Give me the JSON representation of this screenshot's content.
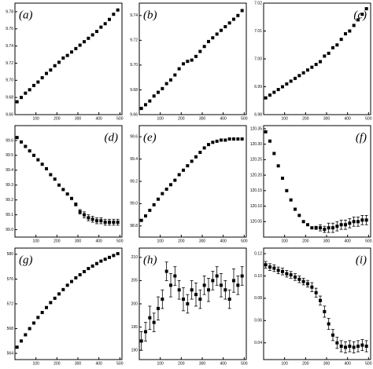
{
  "chart_data": [
    {
      "type": "scatter",
      "label": "(a)",
      "label_corner": "upper left",
      "color": "#000000",
      "x": [
        10,
        30,
        50,
        70,
        90,
        110,
        130,
        150,
        170,
        190,
        210,
        230,
        250,
        270,
        290,
        310,
        330,
        350,
        370,
        390,
        410,
        430,
        450,
        470,
        490
      ],
      "values": [
        9.675,
        9.68,
        9.685,
        9.689,
        9.694,
        9.698,
        9.703,
        9.708,
        9.712,
        9.717,
        9.721,
        9.726,
        9.729,
        9.733,
        9.737,
        9.741,
        9.745,
        9.749,
        9.753,
        9.757,
        9.762,
        9.766,
        9.771,
        9.777,
        9.782
      ],
      "xlim": [
        0,
        510
      ],
      "xticks": [
        100,
        200,
        300,
        400,
        500
      ],
      "ylim": [
        9.66,
        9.79
      ],
      "yticks": [
        9.66,
        9.68,
        {
          "value": 9.7,
          "label": "9.70"
        },
        9.72,
        9.74,
        9.76,
        9.78
      ]
    },
    {
      "type": "scatter",
      "label": "(b)",
      "label_corner": "upper left",
      "color": "#000000",
      "x": [
        10,
        30,
        50,
        70,
        90,
        110,
        130,
        150,
        170,
        190,
        210,
        230,
        250,
        270,
        290,
        310,
        330,
        350,
        370,
        390,
        410,
        430,
        450,
        470,
        490
      ],
      "values": [
        9.665,
        9.668,
        9.671,
        9.675,
        9.678,
        9.681,
        9.685,
        9.688,
        9.692,
        9.697,
        9.701,
        9.703,
        9.704,
        9.707,
        9.711,
        9.715,
        9.719,
        9.722,
        9.725,
        9.728,
        9.731,
        9.734,
        9.737,
        9.74,
        9.744
      ],
      "xlim": [
        0,
        510
      ],
      "xticks": [
        100,
        200,
        300,
        400,
        500
      ],
      "ylim": [
        9.66,
        9.75
      ],
      "yticks": [
        9.66,
        9.68,
        {
          "value": 9.7,
          "label": "9.70"
        },
        9.72,
        9.74
      ]
    },
    {
      "type": "scatter",
      "label": "(c)",
      "label_corner": "upper right",
      "color": "#000000",
      "x": [
        10,
        30,
        50,
        70,
        90,
        110,
        130,
        150,
        170,
        190,
        210,
        230,
        250,
        270,
        290,
        310,
        330,
        350,
        370,
        390,
        410,
        430,
        450,
        470,
        490
      ],
      "values": [
        6.986,
        6.987,
        6.988,
        6.989,
        6.99,
        6.991,
        6.992,
        6.993,
        6.994,
        6.995,
        6.996,
        6.997,
        6.998,
        6.999,
        7.001,
        7.002,
        7.004,
        7.005,
        7.007,
        7.009,
        7.01,
        7.012,
        7.014,
        7.016,
        7.018
      ],
      "xlim": [
        0,
        510
      ],
      "xticks": [
        100,
        200,
        300,
        400,
        500
      ],
      "ylim": [
        6.98,
        7.02
      ],
      "yticks": [
        6.98,
        6.99,
        {
          "value": 7,
          "label": "7.00"
        },
        7.01,
        7.02
      ]
    },
    {
      "type": "scatter",
      "label": "(d)",
      "label_corner": "upper right",
      "color": "#000000",
      "x": [
        10,
        30,
        50,
        70,
        90,
        110,
        130,
        150,
        170,
        190,
        210,
        230,
        250,
        270,
        290,
        310,
        330,
        350,
        370,
        390,
        410,
        430,
        450,
        470,
        490
      ],
      "values": [
        99.62,
        99.59,
        99.56,
        99.53,
        99.5,
        99.47,
        99.44,
        99.41,
        99.37,
        99.34,
        99.3,
        99.27,
        99.24,
        99.21,
        99.17,
        99.12,
        99.1,
        99.08,
        99.07,
        99.06,
        99.06,
        99.05,
        99.05,
        99.05,
        99.05
      ],
      "errors": [
        0,
        0,
        0,
        0,
        0,
        0,
        0,
        0,
        0,
        0,
        0,
        0,
        0,
        0,
        0.01,
        0.015,
        0.02,
        0.02,
        0.02,
        0.02,
        0.02,
        0.02,
        0.02,
        0.02,
        0.02
      ],
      "xlim": [
        0,
        510
      ],
      "xticks": [
        100,
        200,
        300,
        400,
        500
      ],
      "ylim": [
        98.95,
        99.7
      ],
      "yticks": [
        {
          "value": 99,
          "label": "99.0"
        },
        99.1,
        99.2,
        99.3,
        99.4,
        99.5,
        99.6
      ]
    },
    {
      "type": "scatter",
      "label": "(e)",
      "label_corner": "upper left",
      "color": "#000000",
      "x": [
        10,
        30,
        50,
        70,
        90,
        110,
        130,
        150,
        170,
        190,
        210,
        230,
        250,
        270,
        290,
        310,
        330,
        350,
        370,
        390,
        410,
        430,
        450,
        470,
        490
      ],
      "values": [
        98.85,
        98.89,
        98.94,
        98.99,
        99.04,
        99.09,
        99.13,
        99.17,
        99.21,
        99.26,
        99.3,
        99.34,
        99.38,
        99.42,
        99.46,
        99.5,
        99.53,
        99.55,
        99.56,
        99.57,
        99.57,
        99.58,
        99.58,
        99.58,
        99.58
      ],
      "xlim": [
        0,
        510
      ],
      "xticks": [
        100,
        200,
        300,
        400,
        500
      ],
      "ylim": [
        98.7,
        99.7
      ],
      "yticks": [
        98.8,
        {
          "value": 99,
          "label": "99.0"
        },
        99.2,
        99.4,
        99.6
      ]
    },
    {
      "type": "scatter",
      "label": "(f)",
      "label_corner": "upper right",
      "color": "#000000",
      "x": [
        10,
        30,
        50,
        70,
        90,
        110,
        130,
        150,
        170,
        190,
        210,
        230,
        250,
        270,
        290,
        310,
        330,
        350,
        370,
        390,
        410,
        430,
        450,
        470,
        490
      ],
      "values": [
        120.34,
        120.31,
        120.27,
        120.23,
        120.19,
        120.15,
        120.12,
        120.09,
        120.07,
        120.05,
        120.04,
        120.03,
        120.03,
        120.03,
        120.025,
        120.03,
        120.03,
        120.035,
        120.04,
        120.04,
        120.045,
        120.05,
        120.05,
        120.055,
        120.055
      ],
      "errors": [
        0,
        0,
        0,
        0,
        0,
        0,
        0,
        0,
        0,
        0,
        0,
        0,
        0.005,
        0.01,
        0.01,
        0.015,
        0.015,
        0.015,
        0.015,
        0.015,
        0.015,
        0.015,
        0.015,
        0.015,
        0.015
      ],
      "xlim": [
        0,
        510
      ],
      "xticks": [
        100,
        200,
        300,
        400,
        500
      ],
      "ylim": [
        120,
        120.36
      ],
      "yticks": [
        120.05,
        {
          "value": 120.1,
          "label": "120.10"
        },
        120.15,
        {
          "value": 120.2,
          "label": "120.20"
        },
        120.25,
        {
          "value": 120.3,
          "label": "120.30"
        },
        120.35
      ]
    },
    {
      "type": "scatter",
      "label": "(g)",
      "label_corner": "upper left",
      "color": "#000000",
      "x": [
        10,
        30,
        50,
        70,
        90,
        110,
        130,
        150,
        170,
        190,
        210,
        230,
        250,
        270,
        290,
        310,
        330,
        350,
        370,
        390,
        410,
        430,
        450,
        470,
        490
      ],
      "values": [
        565,
        566,
        567,
        568,
        568.9,
        569.8,
        570.6,
        571.4,
        572.2,
        572.9,
        573.6,
        574.3,
        575,
        575.6,
        576.2,
        576.7,
        577.2,
        577.7,
        578.1,
        578.5,
        578.9,
        579.2,
        579.5,
        579.8,
        580.1
      ],
      "xlim": [
        0,
        510
      ],
      "xticks": [
        100,
        200,
        300,
        400,
        500
      ],
      "ylim": [
        563,
        581
      ],
      "yticks": [
        564,
        568,
        572,
        576,
        580
      ]
    },
    {
      "type": "scatter",
      "label": "(h)",
      "label_corner": "upper left",
      "color": "#000000",
      "x": [
        10,
        30,
        50,
        70,
        90,
        110,
        130,
        150,
        170,
        190,
        210,
        230,
        250,
        270,
        290,
        310,
        330,
        350,
        370,
        390,
        410,
        430,
        450,
        470,
        490
      ],
      "values": [
        192,
        194,
        197,
        196,
        199,
        201,
        207,
        204,
        206,
        203,
        201,
        200,
        203,
        202,
        201,
        204,
        203,
        205,
        206,
        204,
        203,
        201,
        205,
        204,
        206
      ],
      "errors": [
        2,
        2,
        2.5,
        2,
        2.5,
        2,
        2,
        2.5,
        2,
        2,
        2.5,
        2,
        2,
        2.5,
        2,
        2,
        2.5,
        2,
        2,
        2.5,
        2,
        2,
        2.5,
        2,
        2
      ],
      "xlim": [
        0,
        510
      ],
      "xticks": [
        100,
        200,
        300,
        400,
        500
      ],
      "ylim": [
        188,
        212
      ],
      "yticks": [
        190,
        195,
        200,
        205,
        210
      ]
    },
    {
      "type": "scatter",
      "label": "(i)",
      "label_corner": "upper right",
      "color": "#000000",
      "x": [
        10,
        30,
        50,
        70,
        90,
        110,
        130,
        150,
        170,
        190,
        210,
        230,
        250,
        270,
        290,
        310,
        330,
        350,
        370,
        390,
        410,
        430,
        450,
        470,
        490
      ],
      "values": [
        0.11,
        0.108,
        0.107,
        0.105,
        0.104,
        0.102,
        0.101,
        0.099,
        0.097,
        0.095,
        0.093,
        0.09,
        0.085,
        0.078,
        0.068,
        0.057,
        0.047,
        0.04,
        0.037,
        0.036,
        0.037,
        0.036,
        0.037,
        0.038,
        0.037
      ],
      "errors": [
        0.003,
        0.003,
        0.003,
        0.003,
        0.003,
        0.003,
        0.003,
        0.003,
        0.003,
        0.003,
        0.003,
        0.004,
        0.004,
        0.004,
        0.005,
        0.005,
        0.005,
        0.005,
        0.005,
        0.005,
        0.005,
        0.005,
        0.005,
        0.005,
        0.005
      ],
      "xlim": [
        0,
        510
      ],
      "xticks": [
        100,
        200,
        300,
        400,
        500
      ],
      "ylim": [
        0.025,
        0.125
      ],
      "yticks": [
        0.04,
        0.06,
        0.08,
        {
          "value": 0.1,
          "label": "0.10"
        },
        0.12
      ]
    }
  ]
}
